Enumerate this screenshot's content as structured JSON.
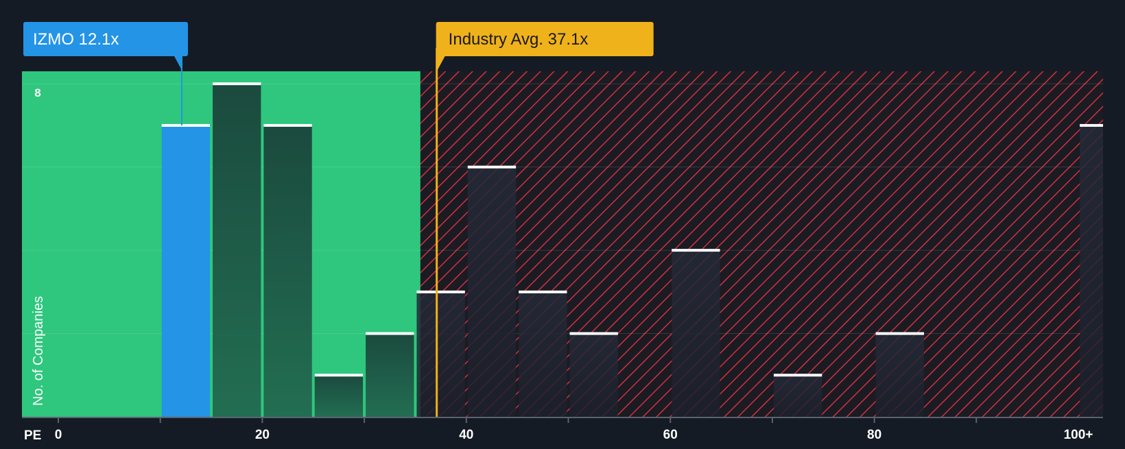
{
  "chart_data": {
    "type": "bar",
    "xlabel": "PE",
    "ylabel": "No. of Companies",
    "y_tick_label": "8",
    "ylim": [
      0,
      8.3
    ],
    "xlim": [
      0,
      102.5
    ],
    "x_ticks": [
      {
        "value": 0,
        "label": "0"
      },
      {
        "value": 20,
        "label": "20"
      },
      {
        "value": 40,
        "label": "40"
      },
      {
        "value": 60,
        "label": "60"
      },
      {
        "value": 80,
        "label": "80"
      },
      {
        "value": 100,
        "label": "100+"
      }
    ],
    "bins": [
      {
        "start": 10,
        "end": 15,
        "count": 7,
        "highlight": true
      },
      {
        "start": 15,
        "end": 20,
        "count": 8
      },
      {
        "start": 20,
        "end": 25,
        "count": 7
      },
      {
        "start": 25,
        "end": 30,
        "count": 1
      },
      {
        "start": 30,
        "end": 35,
        "count": 2
      },
      {
        "start": 35,
        "end": 40,
        "count": 3
      },
      {
        "start": 40,
        "end": 45,
        "count": 6
      },
      {
        "start": 45,
        "end": 50,
        "count": 3
      },
      {
        "start": 50,
        "end": 55,
        "count": 2
      },
      {
        "start": 60,
        "end": 65,
        "count": 4
      },
      {
        "start": 70,
        "end": 75,
        "count": 1
      },
      {
        "start": 80,
        "end": 85,
        "count": 2
      },
      {
        "start": 100,
        "end": 105,
        "count": 7
      }
    ],
    "fair_range_end": 35.5,
    "company": {
      "label": "IZMO 12.1x",
      "value": 12.1
    },
    "industry": {
      "label": "Industry Avg. 37.1x",
      "value": 37.1
    },
    "colors": {
      "background": "#151b24",
      "fair_zone": "#2ec77d",
      "overvalued_hatch": "#d2313a",
      "company": "#2394e6",
      "industry": "#f0b21b"
    }
  }
}
